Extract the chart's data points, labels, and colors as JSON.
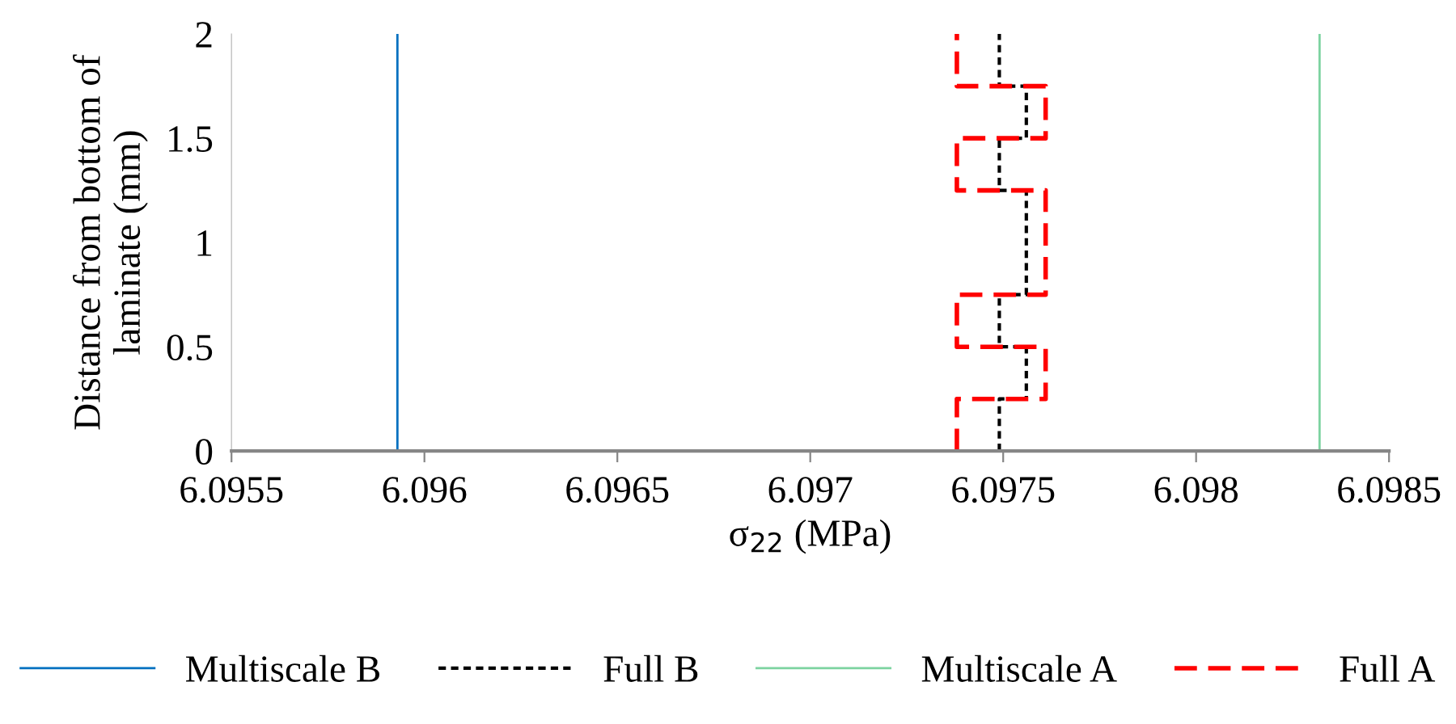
{
  "chart_data": {
    "type": "line",
    "xlabel": "σ$_{22}$ (MPa)",
    "ylabel": "Distance from bottom of\nlaminate (mm)",
    "xlim": [
      6.0955,
      6.0985
    ],
    "xticks": [
      6.0955,
      6.096,
      6.0965,
      6.097,
      6.0975,
      6.098,
      6.0985
    ],
    "ylim": [
      0,
      2
    ],
    "yticks": [
      0,
      0.5,
      1,
      1.5,
      2
    ],
    "grid": false,
    "legend": "bottom",
    "marker": "none",
    "series": [
      {
        "name": "Multiscale B",
        "color": "#0070c0",
        "line_style": "solid",
        "x": [
          6.09593,
          6.09593
        ],
        "values": [
          0,
          2
        ]
      },
      {
        "name": "Full B",
        "color": "#000000",
        "line_style": "dotted",
        "x": [
          6.09749,
          6.09749,
          6.09756,
          6.09756,
          6.09749,
          6.09749,
          6.09756,
          6.09756,
          6.09749,
          6.09749,
          6.09756,
          6.09756,
          6.09749,
          6.09749
        ],
        "values": [
          0,
          0.25,
          0.25,
          0.5,
          0.5,
          0.75,
          0.75,
          1.25,
          1.25,
          1.5,
          1.5,
          1.75,
          1.75,
          2
        ]
      },
      {
        "name": "Multiscale A",
        "color": "#7dd3a0",
        "line_style": "solid",
        "x": [
          6.09832,
          6.09832
        ],
        "values": [
          0,
          2
        ]
      },
      {
        "name": "Full A",
        "color": "#ff0000",
        "line_style": "dashed",
        "x": [
          6.09738,
          6.09738,
          6.09761,
          6.09761,
          6.09738,
          6.09738,
          6.09761,
          6.09761,
          6.09738,
          6.09738,
          6.09761,
          6.09761,
          6.09738,
          6.09738
        ],
        "values": [
          0,
          0.25,
          0.25,
          0.5,
          0.5,
          0.75,
          0.75,
          1.25,
          1.25,
          1.5,
          1.5,
          1.75,
          1.75,
          2
        ]
      }
    ]
  }
}
